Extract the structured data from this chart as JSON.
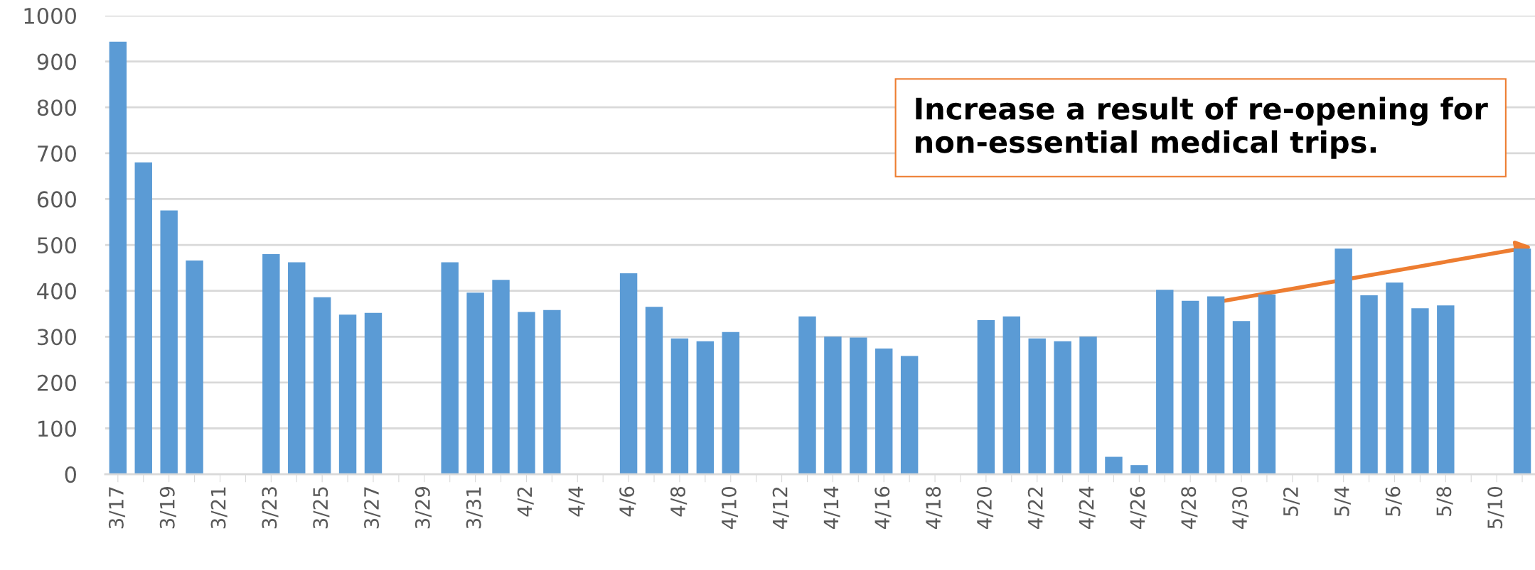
{
  "chart_data": {
    "type": "bar",
    "categories": [
      "3/17",
      null,
      "3/19",
      null,
      "3/21",
      null,
      "3/23",
      null,
      "3/25",
      null,
      "3/27",
      null,
      "3/29",
      null,
      "3/31",
      null,
      "4/2",
      null,
      "4/4",
      null,
      "4/6",
      null,
      "4/8",
      null,
      "4/10",
      null,
      "4/12",
      null,
      "4/14",
      null,
      "4/16",
      null,
      "4/18",
      null,
      "4/20",
      null,
      "4/22",
      null,
      "4/24",
      null,
      "4/26",
      null,
      "4/28",
      null,
      "4/30",
      null,
      "5/2",
      null,
      "5/4",
      null,
      "5/6",
      null,
      "5/8",
      null,
      "5/10",
      null
    ],
    "values": [
      943,
      680,
      575,
      466,
      null,
      null,
      480,
      462,
      386,
      348,
      352,
      null,
      null,
      462,
      396,
      424,
      354,
      358,
      null,
      null,
      438,
      365,
      296,
      290,
      310,
      null,
      null,
      344,
      300,
      298,
      274,
      258,
      null,
      null,
      336,
      344,
      296,
      290,
      300,
      38,
      20,
      402,
      378,
      388,
      334,
      392,
      null,
      null,
      492,
      390,
      418,
      362,
      368,
      null,
      null,
      492
    ],
    "color": "#5b9bd5",
    "ylim": [
      0,
      1000
    ],
    "yticks": [
      0,
      100,
      200,
      300,
      400,
      500,
      600,
      700,
      800,
      900,
      1000
    ],
    "grid": "y",
    "annotations": [
      "Increase a result of re-opening for non-essential medical trips."
    ]
  }
}
